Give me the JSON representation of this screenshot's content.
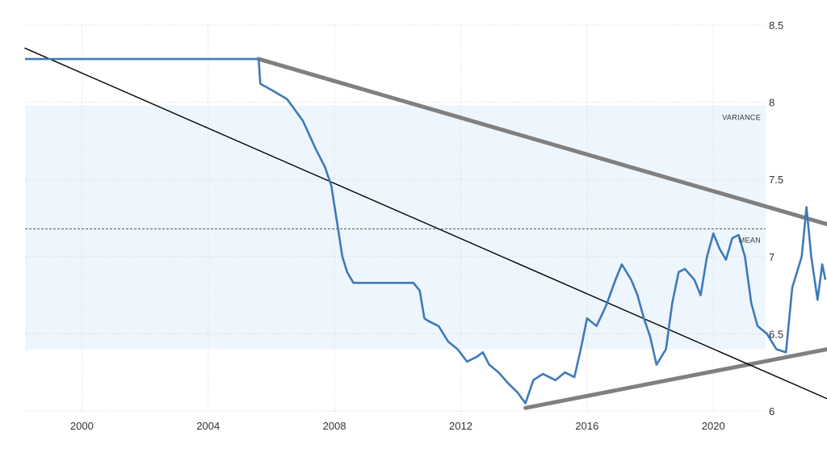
{
  "chart_data": {
    "type": "line",
    "title": "",
    "xlabel": "",
    "ylabel": "",
    "xlim": [
      1998.2,
      2023.6
    ],
    "ylim": [
      6.0,
      8.5
    ],
    "grid": true,
    "x_ticks": [
      "2000",
      "2004",
      "2008",
      "2012",
      "2016",
      "2020"
    ],
    "y_ticks": [
      "6",
      "6.5",
      "7",
      "7.5",
      "8",
      "8.5"
    ],
    "variance_band": {
      "low": 6.4,
      "high": 7.98,
      "label": "VARIANCE"
    },
    "mean": {
      "value": 7.18,
      "label": "MEAN"
    },
    "colors": {
      "series": "#3d7ab8",
      "band": "#eef6fd",
      "grid": "#d6d6d6",
      "channel": "#808080",
      "trend": "#000000"
    },
    "series": [
      {
        "values": [
          [
            1998.2,
            8.28
          ],
          [
            2001.5,
            8.28
          ],
          [
            2005.6,
            8.28
          ],
          [
            2005.65,
            8.12
          ],
          [
            2006.0,
            8.08
          ],
          [
            2006.5,
            8.02
          ],
          [
            2007.0,
            7.88
          ],
          [
            2007.4,
            7.7
          ],
          [
            2007.7,
            7.58
          ],
          [
            2007.9,
            7.46
          ],
          [
            2008.1,
            7.2
          ],
          [
            2008.25,
            7.0
          ],
          [
            2008.4,
            6.9
          ],
          [
            2008.6,
            6.83
          ],
          [
            2009.0,
            6.83
          ],
          [
            2010.0,
            6.83
          ],
          [
            2010.5,
            6.83
          ],
          [
            2010.7,
            6.78
          ],
          [
            2010.85,
            6.6
          ],
          [
            2011.0,
            6.58
          ],
          [
            2011.3,
            6.55
          ],
          [
            2011.6,
            6.45
          ],
          [
            2011.9,
            6.4
          ],
          [
            2012.2,
            6.32
          ],
          [
            2012.5,
            6.35
          ],
          [
            2012.7,
            6.38
          ],
          [
            2012.9,
            6.3
          ],
          [
            2013.2,
            6.25
          ],
          [
            2013.5,
            6.18
          ],
          [
            2013.8,
            6.12
          ],
          [
            2014.05,
            6.05
          ],
          [
            2014.3,
            6.2
          ],
          [
            2014.6,
            6.24
          ],
          [
            2015.0,
            6.2
          ],
          [
            2015.3,
            6.25
          ],
          [
            2015.6,
            6.22
          ],
          [
            2015.8,
            6.4
          ],
          [
            2016.0,
            6.6
          ],
          [
            2016.3,
            6.55
          ],
          [
            2016.6,
            6.68
          ],
          [
            2016.9,
            6.85
          ],
          [
            2017.1,
            6.95
          ],
          [
            2017.4,
            6.85
          ],
          [
            2017.6,
            6.75
          ],
          [
            2017.8,
            6.6
          ],
          [
            2018.0,
            6.48
          ],
          [
            2018.2,
            6.3
          ],
          [
            2018.5,
            6.4
          ],
          [
            2018.7,
            6.7
          ],
          [
            2018.9,
            6.9
          ],
          [
            2019.1,
            6.92
          ],
          [
            2019.4,
            6.85
          ],
          [
            2019.6,
            6.75
          ],
          [
            2019.8,
            7.0
          ],
          [
            2020.0,
            7.15
          ],
          [
            2020.2,
            7.05
          ],
          [
            2020.4,
            6.98
          ],
          [
            2020.6,
            7.12
          ],
          [
            2020.8,
            7.14
          ],
          [
            2021.0,
            7.0
          ],
          [
            2021.2,
            6.7
          ],
          [
            2021.4,
            6.55
          ],
          [
            2021.7,
            6.5
          ],
          [
            2022.0,
            6.4
          ],
          [
            2022.3,
            6.38
          ],
          [
            2022.5,
            6.8
          ],
          [
            2022.8,
            7.0
          ],
          [
            2022.95,
            7.32
          ],
          [
            2023.1,
            7.0
          ],
          [
            2023.3,
            6.72
          ],
          [
            2023.45,
            6.95
          ],
          [
            2023.55,
            6.85
          ]
        ]
      }
    ],
    "trendlines": [
      {
        "kind": "upper-channel",
        "points": [
          [
            2005.6,
            8.28
          ],
          [
            2023.6,
            7.21
          ]
        ]
      },
      {
        "kind": "lower-channel",
        "points": [
          [
            2014.05,
            6.02
          ],
          [
            2023.6,
            6.4
          ]
        ]
      },
      {
        "kind": "regression",
        "points": [
          [
            1998.2,
            8.35
          ],
          [
            2023.6,
            6.08
          ]
        ]
      }
    ]
  }
}
